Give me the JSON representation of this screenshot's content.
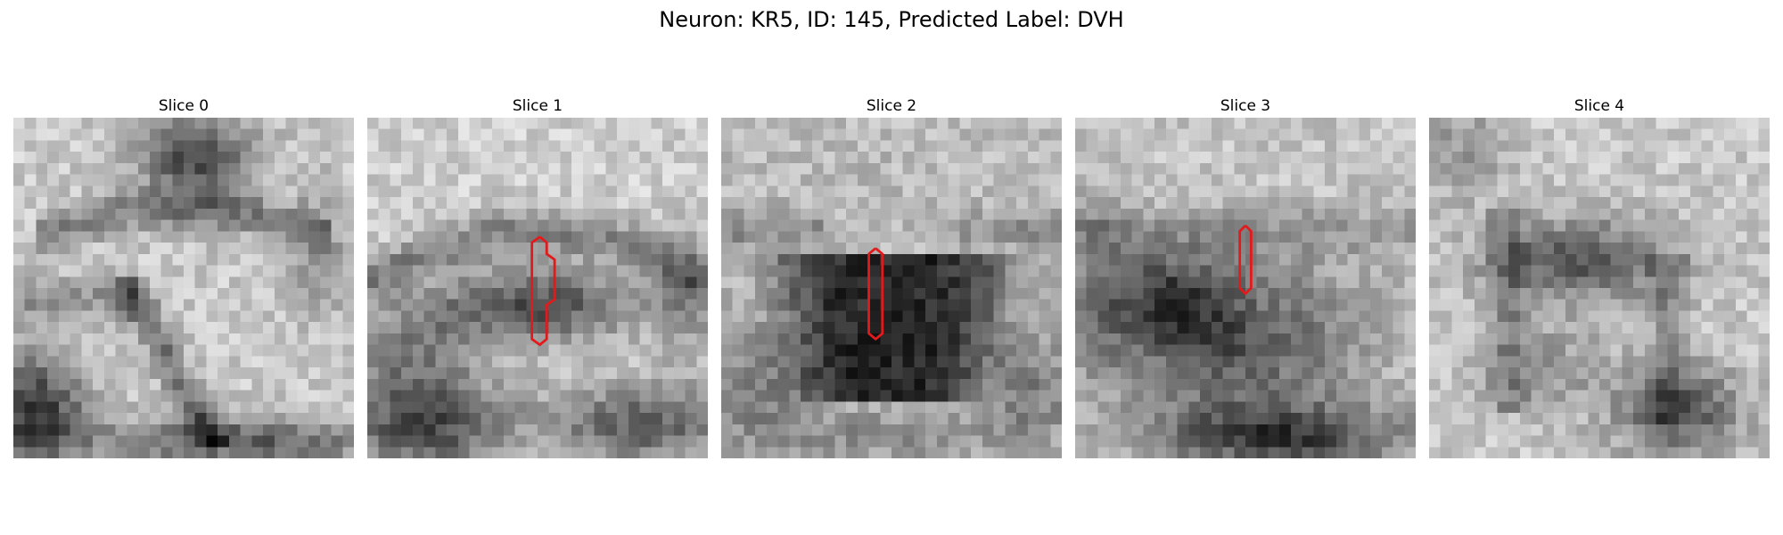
{
  "figure": {
    "title": "Neuron: KR5, ID: 145, Predicted Label: DVH",
    "contour_color": "#e31a1c",
    "colormap": "grayscale",
    "panels": [
      {
        "title": "Slice 0",
        "has_contour": false
      },
      {
        "title": "Slice 1",
        "has_contour": true
      },
      {
        "title": "Slice 2",
        "has_contour": true
      },
      {
        "title": "Slice 3",
        "has_contour": true
      },
      {
        "title": "Slice 4",
        "has_contour": false
      }
    ]
  }
}
